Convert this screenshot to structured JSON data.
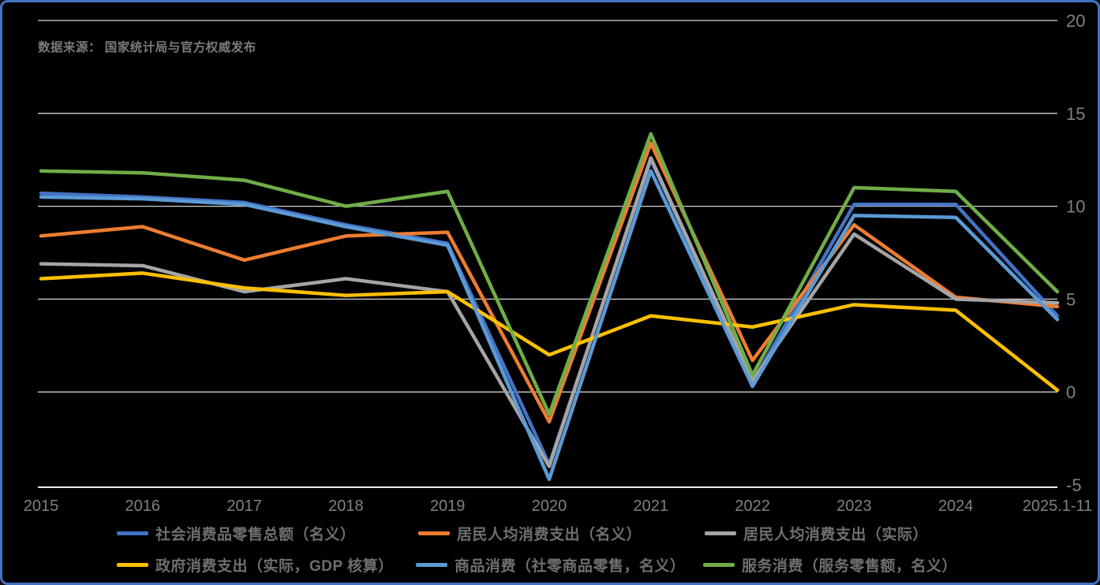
{
  "source_note": "数据来源： 国家统计局与官方权威发布",
  "chart_data": {
    "type": "line",
    "title": "",
    "categories": [
      "2015",
      "2016",
      "2017",
      "2018",
      "2019",
      "2020",
      "2021",
      "2022",
      "2023",
      "2024",
      "2025.1-11"
    ],
    "series": [
      {
        "name": "社会消费品零售总额（名义）",
        "color": "#4472C4",
        "values": [
          10.7,
          10.5,
          10.2,
          9.0,
          8.0,
          -3.9,
          12.5,
          0.5,
          10.1,
          10.1,
          4.1
        ]
      },
      {
        "name": "居民人均消费支出（名义）",
        "color": "#ED7D31",
        "values": [
          8.4,
          8.9,
          7.1,
          8.4,
          8.6,
          -1.6,
          13.4,
          1.7,
          9.0,
          5.1,
          4.6
        ]
      },
      {
        "name": "居民人均消费支出（实际）",
        "color": "#A5A5A5",
        "values": [
          6.9,
          6.8,
          5.4,
          6.1,
          5.4,
          -4.0,
          12.6,
          0.6,
          8.5,
          5.0,
          4.8
        ]
      },
      {
        "name": "政府消费支出（实际，GDP 核算）",
        "color": "#FFC000",
        "values": [
          6.1,
          6.4,
          5.6,
          5.2,
          5.4,
          2.0,
          4.1,
          3.5,
          4.7,
          4.4,
          0.1
        ]
      },
      {
        "name": "商品消费（社零商品零售，名义）",
        "color": "#5B9BD5",
        "values": [
          10.5,
          10.4,
          10.1,
          8.9,
          7.9,
          -4.7,
          11.9,
          0.3,
          9.5,
          9.4,
          3.9
        ]
      },
      {
        "name": "服务消费（服务零售额，名义）",
        "color": "#70AD47",
        "values": [
          11.9,
          11.8,
          11.4,
          10.0,
          10.8,
          -1.2,
          13.9,
          0.9,
          11.0,
          10.8,
          5.4
        ]
      }
    ],
    "ylim": [
      -5,
      20
    ],
    "yticks": [
      20,
      15,
      10,
      5,
      0,
      -5
    ],
    "ytick_side": "right",
    "grid": "horizontal",
    "legend_position": "bottom",
    "legend_rows": [
      [
        0,
        1,
        2
      ],
      [
        3,
        4,
        5
      ]
    ],
    "background": "#000000",
    "border_color": "#4472C4",
    "gridline_color": "#d2d2d2",
    "axis_line_color": "#ececec",
    "tick_label_color": "#808080"
  }
}
